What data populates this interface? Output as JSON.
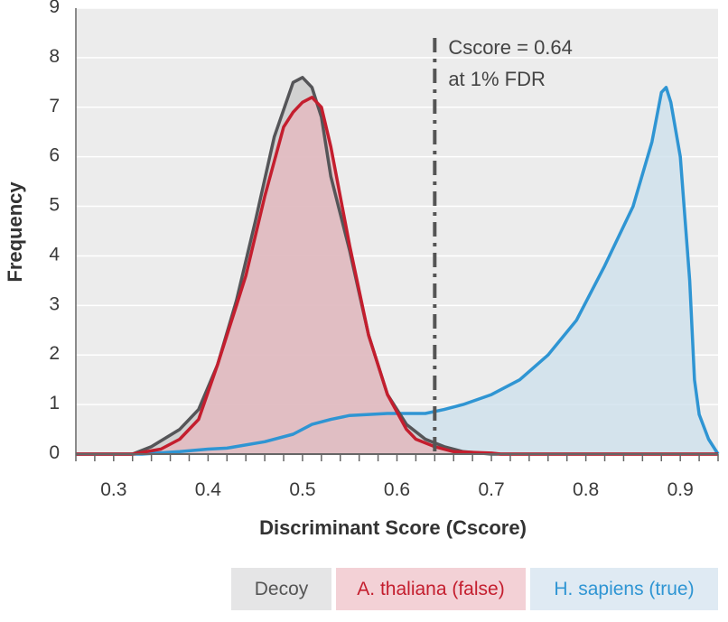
{
  "chart_data": {
    "type": "area",
    "xlabel": "Discriminant Score (Cscore)",
    "ylabel": "Frequency",
    "xlim": [
      0.26,
      0.94
    ],
    "ylim": [
      0,
      9
    ],
    "x_ticks": [
      "0.3",
      "0.4",
      "0.5",
      "0.6",
      "0.7",
      "0.8",
      "0.9"
    ],
    "y_ticks": [
      "0",
      "1",
      "2",
      "3",
      "4",
      "5",
      "6",
      "7",
      "8",
      "9"
    ],
    "grid": "horizontal",
    "threshold": {
      "x": 0.64,
      "label_line1": "Cscore = 0.64",
      "label_line2": "at 1% FDR"
    },
    "series": [
      {
        "name": "Decoy",
        "fill": "#c9c9c9",
        "stroke": "#555558",
        "legend_bg": "#e5e5e6",
        "legend_text": "#555555",
        "x": [
          0.26,
          0.32,
          0.34,
          0.37,
          0.39,
          0.41,
          0.43,
          0.45,
          0.47,
          0.49,
          0.5,
          0.51,
          0.515,
          0.52,
          0.53,
          0.55,
          0.57,
          0.59,
          0.61,
          0.63,
          0.65,
          0.67,
          0.7,
          0.72,
          0.94
        ],
        "y": [
          0,
          0,
          0.15,
          0.5,
          0.9,
          1.8,
          3.1,
          4.7,
          6.4,
          7.5,
          7.6,
          7.4,
          7.1,
          6.8,
          5.6,
          4.1,
          2.4,
          1.2,
          0.6,
          0.3,
          0.15,
          0.05,
          0,
          0,
          0
        ]
      },
      {
        "name": "A. thaliana (false)",
        "fill": "#e6b8bf",
        "stroke": "#c41e2e",
        "legend_bg": "#f3d1d6",
        "legend_text": "#c41e2e",
        "x": [
          0.26,
          0.32,
          0.35,
          0.37,
          0.39,
          0.41,
          0.43,
          0.44,
          0.46,
          0.48,
          0.49,
          0.5,
          0.51,
          0.52,
          0.53,
          0.55,
          0.57,
          0.59,
          0.61,
          0.62,
          0.64,
          0.66,
          0.7,
          0.71,
          0.94
        ],
        "y": [
          0,
          0,
          0.1,
          0.3,
          0.7,
          1.8,
          3.0,
          3.6,
          5.2,
          6.6,
          6.9,
          7.1,
          7.2,
          7.0,
          6.2,
          4.2,
          2.4,
          1.2,
          0.5,
          0.3,
          0.15,
          0.05,
          0.02,
          0,
          0
        ]
      },
      {
        "name": "H. sapiens (true)",
        "fill": "#cde0ec",
        "stroke": "#2f95d3",
        "legend_bg": "#dfeaf3",
        "legend_text": "#2f95d3",
        "x": [
          0.26,
          0.33,
          0.37,
          0.4,
          0.42,
          0.46,
          0.49,
          0.51,
          0.53,
          0.55,
          0.57,
          0.59,
          0.61,
          0.63,
          0.65,
          0.67,
          0.7,
          0.73,
          0.76,
          0.79,
          0.82,
          0.85,
          0.87,
          0.88,
          0.885,
          0.89,
          0.9,
          0.91,
          0.915,
          0.92,
          0.93,
          0.94
        ],
        "y": [
          0,
          0,
          0.05,
          0.1,
          0.12,
          0.25,
          0.4,
          0.6,
          0.7,
          0.78,
          0.8,
          0.82,
          0.82,
          0.82,
          0.9,
          1.0,
          1.2,
          1.5,
          2.0,
          2.7,
          3.8,
          5.0,
          6.3,
          7.3,
          7.4,
          7.1,
          6.0,
          3.5,
          1.5,
          0.8,
          0.3,
          0
        ]
      }
    ]
  }
}
